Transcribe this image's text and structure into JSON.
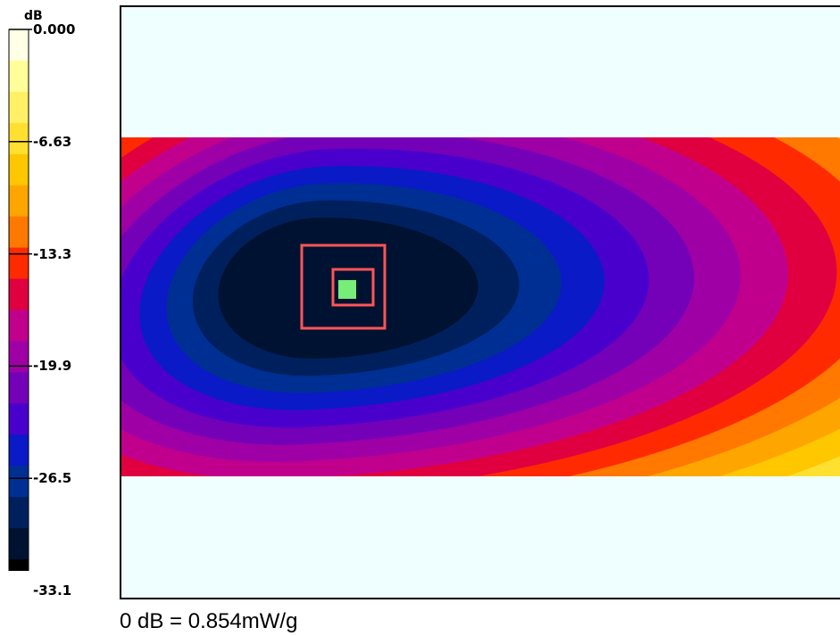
{
  "colorbar": {
    "unit": "dB",
    "tick_labels": [
      "0.000",
      "-6.63",
      "-13.3",
      "-19.9",
      "-26.5",
      "-33.1"
    ],
    "band_colors": [
      "#ffffe6",
      "#ffff99",
      "#fff066",
      "#ffe030",
      "#ffc700",
      "#ffa500",
      "#ff7800",
      "#ff2a00",
      "#e00040",
      "#c0008c",
      "#9e00a6",
      "#7400b8",
      "#4a00cc",
      "#0a1ac6",
      "#002f93",
      "#00205d",
      "#001231",
      "#000000"
    ]
  },
  "chart_data": {
    "type": "heatmap",
    "title": "",
    "zlabel": "dB",
    "zlim": [
      -33.1,
      0.0
    ],
    "colorbar_ticks": [
      0.0,
      -6.63,
      -13.3,
      -19.9,
      -26.5,
      -33.1
    ],
    "contour_levels": [
      -1.84,
      -3.68,
      -5.52,
      -7.36,
      -9.2,
      -11.0,
      -12.9,
      -14.7,
      -16.6,
      -18.4,
      -20.2,
      -22.1,
      -23.9,
      -25.7,
      -27.6,
      -29.4,
      -31.3
    ],
    "peak_value": 0.0
  },
  "reference": {
    "text": "0 dB = 0.854mW/g"
  }
}
